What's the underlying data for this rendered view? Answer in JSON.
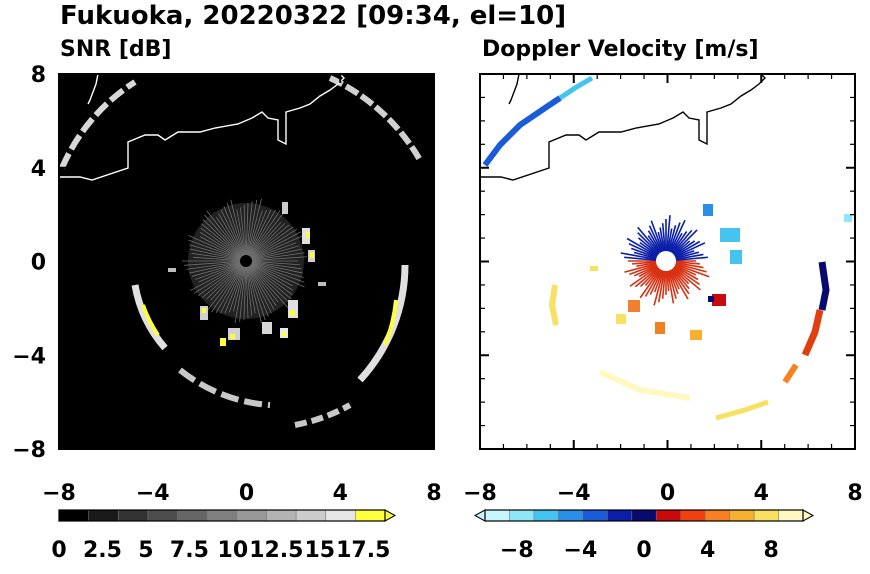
{
  "figure": {
    "title": "Fukuoka, 20220322 [09:34, el=10]"
  },
  "chart_data": [
    {
      "type": "heatmap",
      "subtitle": "SNR [dB]",
      "xlim": [
        -8,
        8
      ],
      "ylim": [
        -8,
        8
      ],
      "xticks": [
        "−8",
        "−4",
        "0",
        "4",
        "8"
      ],
      "yticks": [
        "8",
        "4",
        "0",
        "−4",
        "−8"
      ],
      "background_color": "#000000",
      "colorbar": {
        "range": [
          0,
          18.75
        ],
        "ticks": [
          "0",
          "2.5",
          "5",
          "7.5",
          "10",
          "12.5",
          "15",
          "17.5"
        ],
        "colors": [
          "#000000",
          "#1a1a1a",
          "#333333",
          "#4d4d4d",
          "#666666",
          "#808080",
          "#999999",
          "#b3b3b3",
          "#cccccc",
          "#e6e6e6",
          "#ffff40"
        ],
        "extend": "max"
      }
    },
    {
      "type": "heatmap",
      "subtitle": "Doppler Velocity [m/s]",
      "xlim": [
        -8,
        8
      ],
      "ylim": [
        -8,
        8
      ],
      "xticks": [
        "−8",
        "−4",
        "0",
        "4",
        "8"
      ],
      "yticks": [],
      "background_color": "#ffffff",
      "colorbar": {
        "range": [
          -10,
          10
        ],
        "ticks": [
          "−8",
          "−4",
          "0",
          "4",
          "8"
        ],
        "colors": [
          "#c8f6ff",
          "#8ee6f8",
          "#46c4f0",
          "#2a8fe6",
          "#1a5bd8",
          "#0a1ea8",
          "#0a0a6e",
          "#c80a0a",
          "#f04010",
          "#f88020",
          "#f8b030",
          "#f8e060",
          "#fff8c0"
        ],
        "extend": "both"
      }
    }
  ]
}
